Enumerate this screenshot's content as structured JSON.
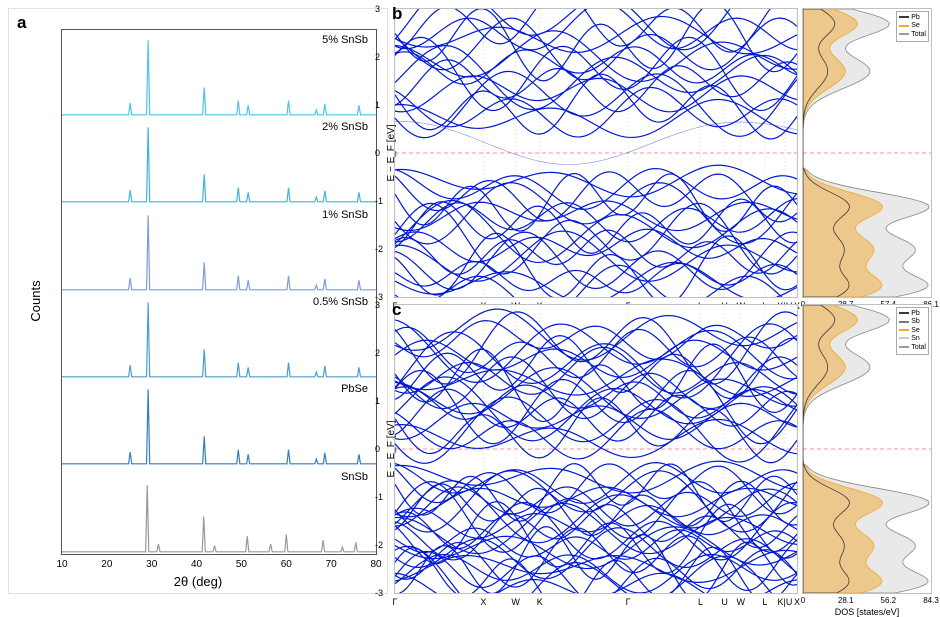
{
  "panel_a": {
    "label": "a",
    "xlabel": "2θ (deg)",
    "ylabel": "Counts",
    "xlim": [
      10,
      80
    ],
    "xticks": [
      10,
      20,
      30,
      40,
      50,
      60,
      70,
      80
    ],
    "traces": [
      {
        "label": "5% SnSb",
        "color": "#4fc3e8"
      },
      {
        "label": "2% SnSb",
        "color": "#3db4e0"
      },
      {
        "label": "1% SnSb",
        "color": "#7e9cd8"
      },
      {
        "label": "0.5% SnSb",
        "color": "#4a9bd4"
      },
      {
        "label": "PbSe",
        "color": "#2f7fc4"
      },
      {
        "label": "SnSb",
        "color": "#999999"
      }
    ],
    "peaks_pbse": [
      {
        "x": 25.2,
        "h": 0.15
      },
      {
        "x": 29.2,
        "h": 0.95
      },
      {
        "x": 41.7,
        "h": 0.35
      },
      {
        "x": 49.3,
        "h": 0.18
      },
      {
        "x": 51.5,
        "h": 0.12
      },
      {
        "x": 60.5,
        "h": 0.18
      },
      {
        "x": 66.7,
        "h": 0.06
      },
      {
        "x": 68.6,
        "h": 0.14
      },
      {
        "x": 76.2,
        "h": 0.12
      }
    ],
    "peaks_snsb": [
      {
        "x": 29.0,
        "h": 0.85
      },
      {
        "x": 31.5,
        "h": 0.1
      },
      {
        "x": 41.6,
        "h": 0.45
      },
      {
        "x": 44.0,
        "h": 0.08
      },
      {
        "x": 51.3,
        "h": 0.2
      },
      {
        "x": 56.5,
        "h": 0.1
      },
      {
        "x": 60.0,
        "h": 0.22
      },
      {
        "x": 68.2,
        "h": 0.15
      },
      {
        "x": 72.5,
        "h": 0.06
      },
      {
        "x": 75.5,
        "h": 0.12
      }
    ],
    "line_width": 1.2,
    "background_color": "#ffffff",
    "axis_color": "#555555"
  },
  "panel_b": {
    "label": "b",
    "ylabel": "E − E_F [eV]",
    "ylim": [
      -3,
      3
    ],
    "yticks": [
      -3,
      -2,
      -1,
      0,
      1,
      2,
      3
    ],
    "kpoints": [
      "Γ",
      "X",
      "W",
      "K",
      "Γ",
      "L",
      "U",
      "W",
      "L",
      "K|U",
      "X"
    ],
    "kpos": [
      0,
      0.22,
      0.3,
      0.36,
      0.58,
      0.76,
      0.82,
      0.86,
      0.92,
      0.97,
      1.0
    ],
    "band_color": "#0018d4",
    "band_width": 1.2,
    "fermi_color": "#e03030",
    "fermi_dash": "4,3",
    "grid_color": "#bbbbbb",
    "grid_dash": "2,2",
    "dos": {
      "xlabel": "DOS [states/eV]",
      "xlim": [
        0.0,
        86.1
      ],
      "xticks": [
        0.0,
        28.7,
        57.4,
        86.1
      ],
      "legend": [
        {
          "label": "Pb",
          "color": "#3a3a3a"
        },
        {
          "label": "Se",
          "color": "#f2a832"
        },
        {
          "label": "Total",
          "color": "#9a9a9a"
        }
      ],
      "fill_colors": {
        "pb": "#3a3a3a22",
        "se": "#f2a83280",
        "total": "#bababa50"
      }
    }
  },
  "panel_c": {
    "label": "c",
    "ylabel": "E − E_F [eV]",
    "ylim": [
      -3,
      3
    ],
    "yticks": [
      -3,
      -2,
      -1,
      0,
      1,
      2,
      3
    ],
    "kpoints": [
      "Γ",
      "X",
      "W",
      "K",
      "Γ",
      "L",
      "U",
      "W",
      "L",
      "K|U",
      "X"
    ],
    "kpos": [
      0,
      0.22,
      0.3,
      0.36,
      0.58,
      0.76,
      0.82,
      0.86,
      0.92,
      0.97,
      1.0
    ],
    "band_color": "#0018d4",
    "band_width": 1.2,
    "fermi_color": "#e03030",
    "fermi_dash": "4,3",
    "grid_color": "#bbbbbb",
    "grid_dash": "2,2",
    "dos": {
      "xlabel": "DOS [states/eV]",
      "xlim": [
        0.0,
        84.3
      ],
      "xticks": [
        0.0,
        28.1,
        56.2,
        84.3
      ],
      "legend": [
        {
          "label": "Pb",
          "color": "#3a3a3a"
        },
        {
          "label": "Sb",
          "color": "#7a7a7a"
        },
        {
          "label": "Se",
          "color": "#f2a832"
        },
        {
          "label": "Sn",
          "color": "#c9c9c9"
        },
        {
          "label": "Total",
          "color": "#9a9a9a"
        }
      ],
      "fill_colors": {
        "se": "#f2a83280",
        "total": "#bababa50"
      }
    }
  }
}
